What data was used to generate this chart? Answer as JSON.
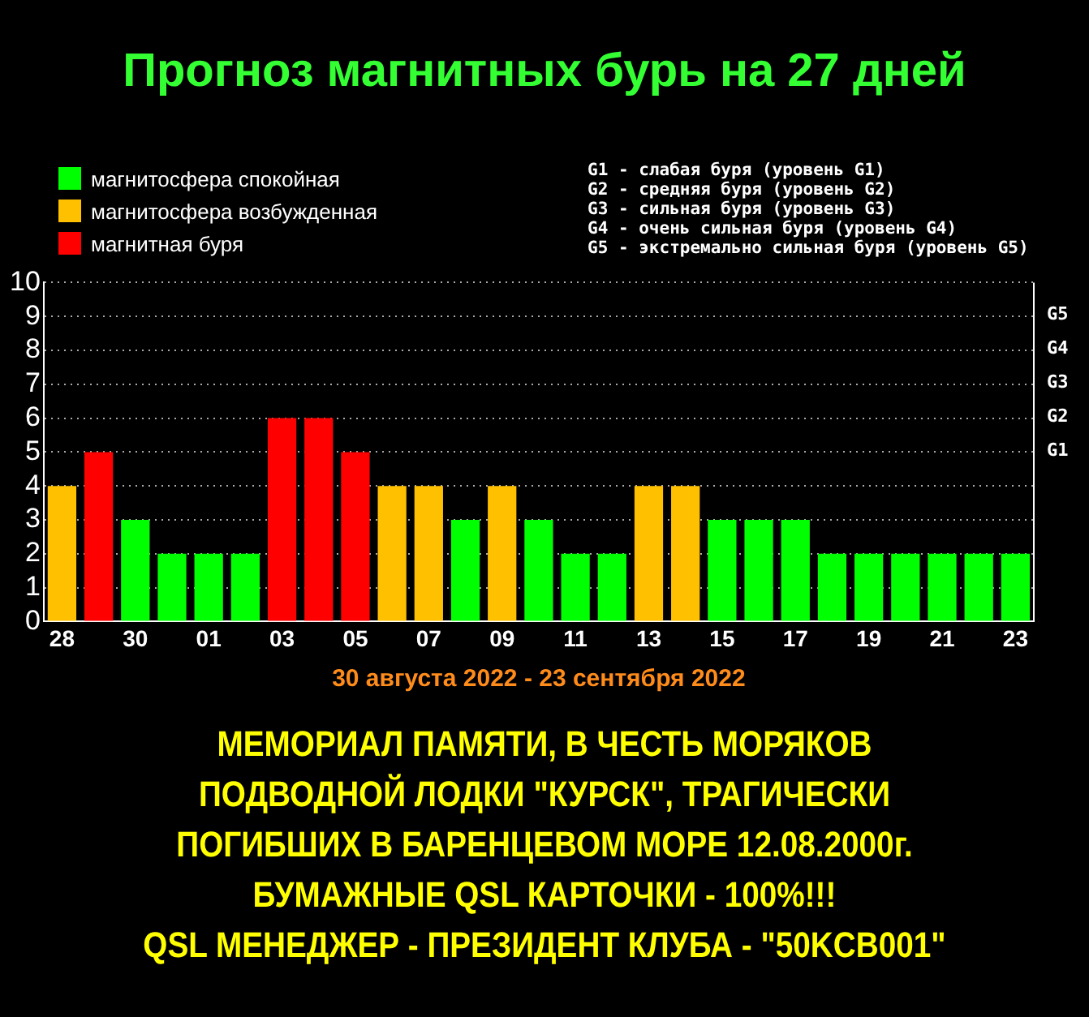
{
  "chart_data": {
    "type": "bar",
    "title": "Прогноз магнитных бурь на 27 дней",
    "xlabel": "30 августа 2022 - 23 сентября 2022",
    "categories": [
      "28",
      null,
      "30",
      null,
      "01",
      null,
      "03",
      null,
      "05",
      null,
      "07",
      null,
      "09",
      null,
      "11",
      null,
      "13",
      null,
      "15",
      null,
      "17",
      null,
      "19",
      null,
      "21",
      null,
      "23"
    ],
    "stacked": true,
    "series": [
      {
        "name": "магнитосфера спокойная",
        "color": "#00ff00",
        "values": [
          null,
          null,
          3,
          2,
          2,
          2,
          null,
          null,
          null,
          null,
          null,
          3,
          null,
          3,
          2,
          2,
          null,
          null,
          3,
          3,
          3,
          2,
          2,
          2,
          2,
          2,
          2
        ]
      },
      {
        "name": "магнитосфера возбужденная",
        "color": "#ffc000",
        "values": [
          4,
          null,
          null,
          null,
          null,
          null,
          null,
          null,
          null,
          4,
          4,
          null,
          4,
          null,
          null,
          null,
          4,
          4,
          null,
          null,
          null,
          null,
          null,
          null,
          null,
          null,
          null
        ]
      },
      {
        "name": "магнитная буря",
        "color": "#ff0000",
        "values": [
          null,
          5,
          null,
          null,
          null,
          null,
          6,
          6,
          5,
          null,
          null,
          null,
          null,
          null,
          null,
          null,
          null,
          null,
          null,
          null,
          null,
          null,
          null,
          null,
          null,
          null,
          null
        ]
      }
    ],
    "ylim": [
      0,
      10
    ],
    "yticks": [
      0,
      1,
      2,
      3,
      4,
      5,
      6,
      7,
      8,
      9,
      10
    ],
    "grid": "y",
    "legend": "top left",
    "annotations": [
      "G1 - слабая буря (уровень G1)",
      "G2 - средняя буря (уровень G2)",
      "G3 - сильная буря (уровень G3)",
      "G4 - очень сильная буря (уровень G4)",
      "G5 - экстремально сильная буря (уровень G5)",
      "МЕМОРИАЛ ПАМЯТИ, В ЧЕСТЬ МОРЯКОВ",
      "ПОДВОДНОЙ ЛОДКИ \"КУРСК\", ТРАГИЧЕСКИ",
      "ПОГИБШИХ В БАРЕНЦЕВОМ МОРЕ 12.08.2000г.",
      "БУМАЖНЫЕ QSL КАРТОЧКИ - 100%!!!",
      "QSL МЕНЕДЖЕР - ПРЕЗИДЕНТ КЛУБА - \"50KCB001\"",
      "G5",
      "G4",
      "G3",
      "G2",
      "G1"
    ]
  }
}
